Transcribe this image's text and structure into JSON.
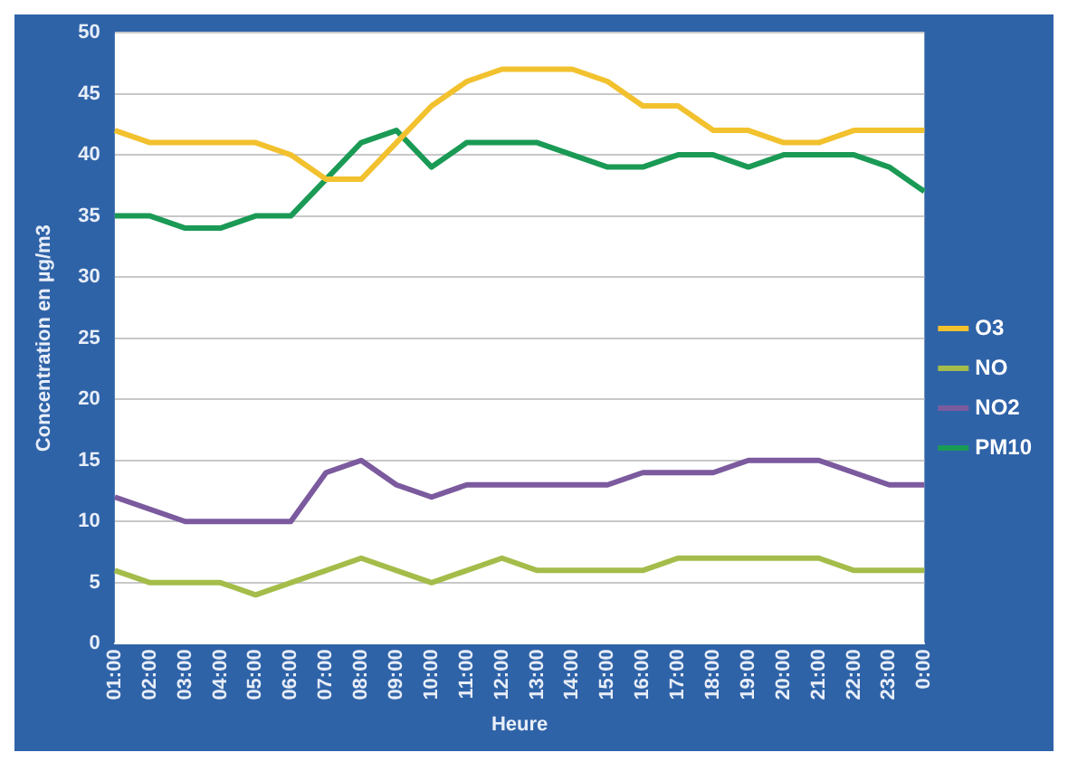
{
  "chart_data": {
    "type": "line",
    "xlabel": "Heure",
    "ylabel": "Concentration en µg/m3",
    "categories": [
      "01:00",
      "02:00",
      "03:00",
      "04:00",
      "05:00",
      "06:00",
      "07:00",
      "08:00",
      "09:00",
      "10:00",
      "11:00",
      "12:00",
      "13:00",
      "14:00",
      "15:00",
      "16:00",
      "17:00",
      "18:00",
      "19:00",
      "20:00",
      "21:00",
      "22:00",
      "23:00",
      "0:00"
    ],
    "series": [
      {
        "name": "O3",
        "color": "#f2c12e",
        "values": [
          42,
          41,
          41,
          41,
          41,
          40,
          38,
          38,
          41,
          44,
          46,
          47,
          47,
          47,
          46,
          44,
          44,
          42,
          42,
          41,
          41,
          42,
          42,
          42
        ]
      },
      {
        "name": "NO",
        "color": "#a4bd4a",
        "values": [
          6,
          5,
          5,
          5,
          4,
          5,
          6,
          7,
          6,
          5,
          6,
          7,
          6,
          6,
          6,
          6,
          7,
          7,
          7,
          7,
          7,
          6,
          6,
          6
        ]
      },
      {
        "name": "NO2",
        "color": "#7b5a9e",
        "values": [
          12,
          11,
          10,
          10,
          10,
          10,
          14,
          15,
          13,
          12,
          13,
          13,
          13,
          13,
          13,
          14,
          14,
          14,
          15,
          15,
          15,
          14,
          13,
          13
        ]
      },
      {
        "name": "PM10",
        "color": "#1a9a55",
        "values": [
          35,
          35,
          34,
          34,
          35,
          35,
          38,
          41,
          42,
          39,
          41,
          41,
          41,
          40,
          39,
          39,
          40,
          40,
          39,
          40,
          40,
          40,
          39,
          37
        ]
      }
    ],
    "ylim": [
      0,
      50
    ],
    "yticks": [
      0,
      5,
      10,
      15,
      20,
      25,
      30,
      35,
      40,
      45,
      50
    ],
    "grid": "y",
    "legend": "right",
    "marker": "none",
    "line_style": "solid"
  }
}
